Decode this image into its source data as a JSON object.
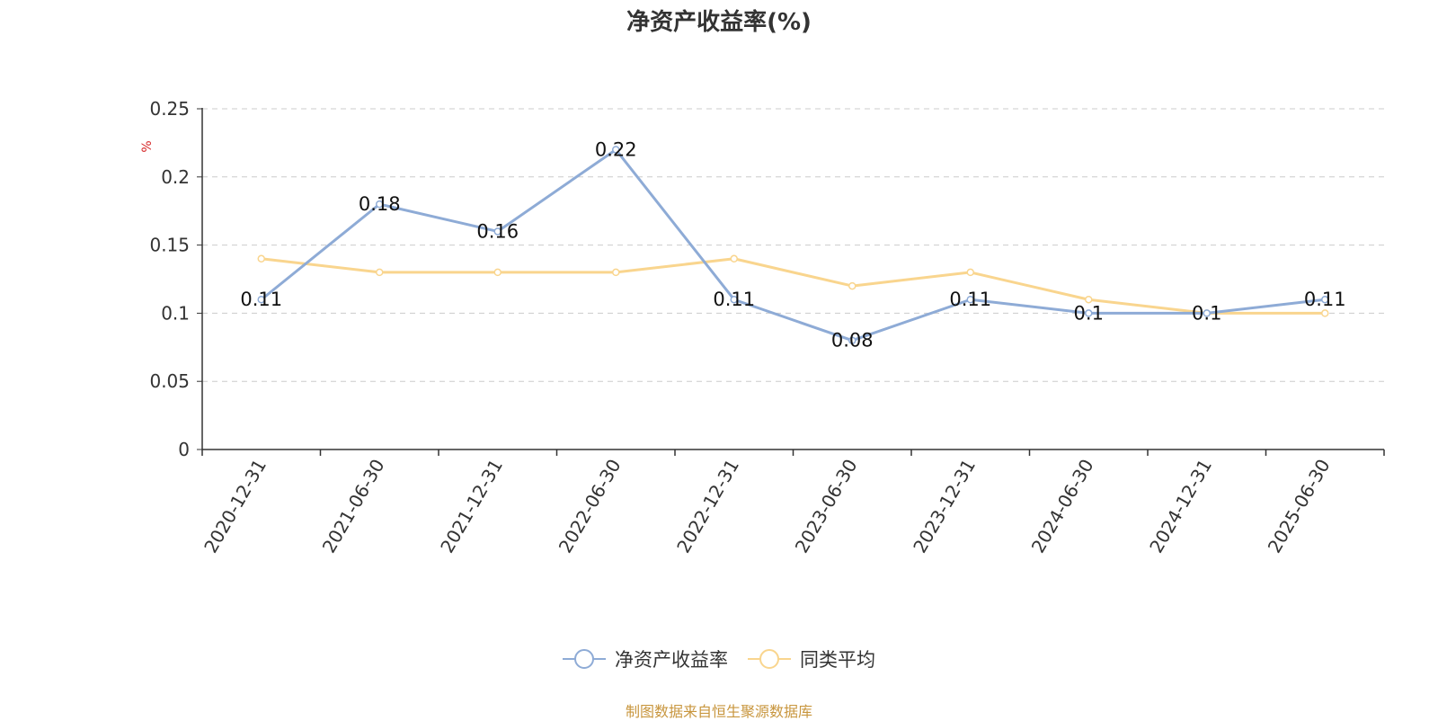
{
  "title": "净资产收益率(%)",
  "source_note": "制图数据来自恒生聚源数据库",
  "colors": {
    "series_primary": "#8eabd6",
    "series_average": "#f9d58e",
    "axis": "#333333",
    "grid": "#cccccc",
    "unit_label": "#d62728",
    "source_note": "#c8963e"
  },
  "chart_data": {
    "type": "line",
    "title": "净资产收益率(%)",
    "ylabel": "%",
    "xlabel": "",
    "ylim": [
      0,
      0.25
    ],
    "yticks": [
      "0",
      "0.05",
      "0.1",
      "0.15",
      "0.2",
      "0.25"
    ],
    "categories": [
      "2020-12-31",
      "2021-06-30",
      "2021-12-31",
      "2022-06-30",
      "2022-12-31",
      "2023-06-30",
      "2023-12-31",
      "2024-06-30",
      "2024-12-31",
      "2025-06-30"
    ],
    "grid": true,
    "legend_position": "bottom-center",
    "series": [
      {
        "name": "净资产收益率",
        "values": [
          0.11,
          0.18,
          0.16,
          0.22,
          0.11,
          0.08,
          0.11,
          0.1,
          0.1,
          0.11
        ],
        "labels": [
          "0.11",
          "0.18",
          "0.16",
          "0.22",
          "0.11",
          "0.08",
          "0.11",
          "0.1",
          "0.1",
          "0.11"
        ]
      },
      {
        "name": "同类平均",
        "values": [
          0.14,
          0.13,
          0.13,
          0.13,
          0.14,
          0.12,
          0.13,
          0.11,
          0.1,
          0.1
        ]
      }
    ]
  }
}
